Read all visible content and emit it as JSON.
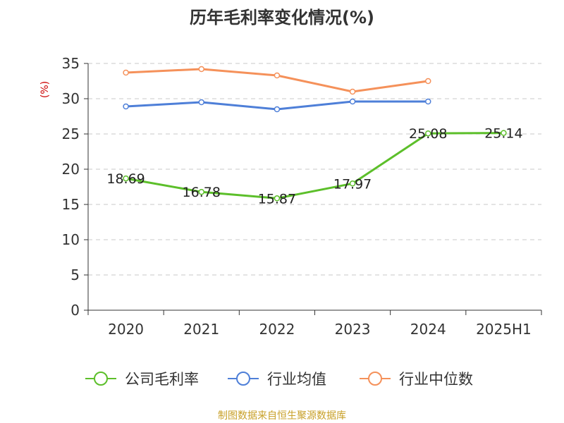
{
  "chart_data": {
    "type": "line",
    "title": "历年毛利率变化情况(%)",
    "ylabel": "(%)",
    "categories": [
      "2020",
      "2021",
      "2022",
      "2023",
      "2024",
      "2025H1"
    ],
    "ylim": [
      0,
      35
    ],
    "yticks": [
      0,
      5,
      10,
      15,
      20,
      25,
      30,
      35
    ],
    "grid": true,
    "legend_position": "bottom",
    "series": [
      {
        "name": "公司毛利率",
        "color": "#5cbf2a",
        "values": [
          18.69,
          16.78,
          15.87,
          17.97,
          25.08,
          25.14
        ],
        "labels": [
          "18.69",
          "16.78",
          "15.87",
          "17.97",
          "25.08",
          "25.14"
        ]
      },
      {
        "name": "行业均值",
        "color": "#4e7fd8",
        "values": [
          28.9,
          29.5,
          28.5,
          29.6,
          29.6,
          null
        ]
      },
      {
        "name": "行业中位数",
        "color": "#f5915a",
        "values": [
          33.7,
          34.2,
          33.3,
          31.0,
          32.5,
          null
        ]
      }
    ]
  },
  "source_text": "制图数据来自恒生聚源数据库"
}
